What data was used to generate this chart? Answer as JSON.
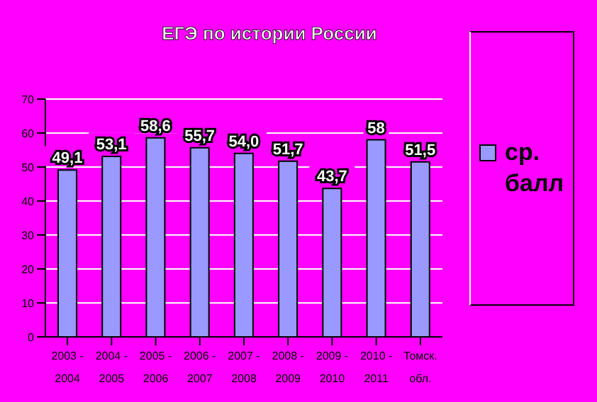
{
  "chart_data": {
    "type": "bar",
    "title": "ЕГЭ по истории России",
    "categories": [
      "2003 - 2004",
      "2004 - 2005",
      "2005 - 2006",
      "2006 - 2007",
      "2007 - 2008",
      "2008 - 2009",
      "2009 - 2010",
      "2010 - 2011",
      "Томск. обл."
    ],
    "series": [
      {
        "name": "ср. балл",
        "color": "#9999ff",
        "values": [
          49.1,
          53.1,
          58.6,
          55.7,
          54.0,
          51.7,
          43.7,
          58,
          51.5
        ],
        "value_labels": [
          "49,1",
          "53,1",
          "58,6",
          "55,7",
          "54,0",
          "51,7",
          "43,7",
          "58",
          "51,5"
        ]
      }
    ],
    "ylim": [
      0,
      70
    ],
    "yticks": [
      0,
      10,
      20,
      30,
      40,
      50,
      60,
      70
    ],
    "grid": "y",
    "legend": "right"
  }
}
